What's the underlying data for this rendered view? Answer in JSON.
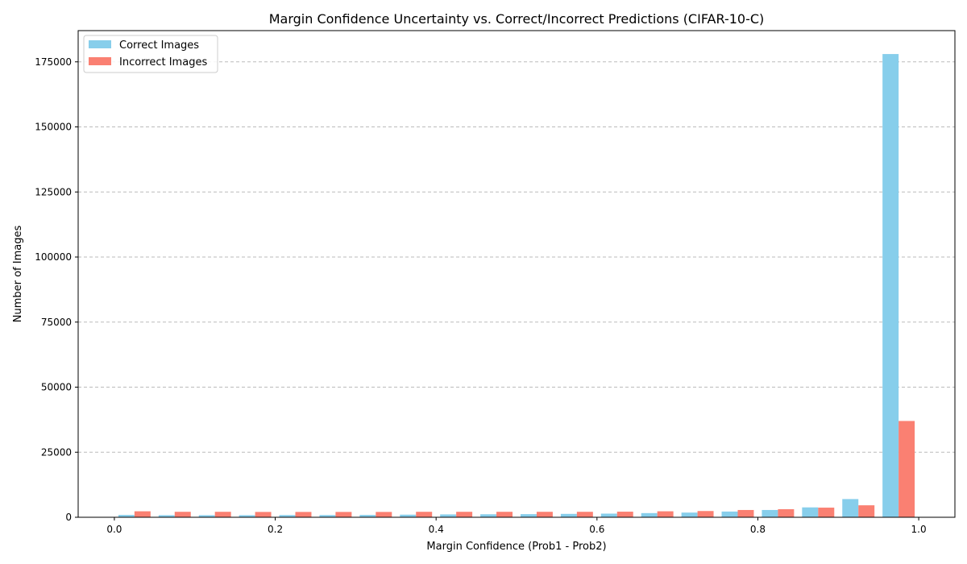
{
  "chart_data": {
    "type": "bar",
    "title": "Margin Confidence Uncertainty vs. Correct/Incorrect Predictions (CIFAR-10-C)",
    "xlabel": "Margin Confidence (Prob1 - Prob2)",
    "ylabel": "Number of Images",
    "xlim": [
      -0.045,
      1.045
    ],
    "ylim": [
      0,
      187000
    ],
    "xticks": [
      0.0,
      0.2,
      0.4,
      0.6,
      0.8,
      1.0
    ],
    "xtick_labels": [
      "0.0",
      "0.2",
      "0.4",
      "0.6",
      "0.8",
      "1.0"
    ],
    "yticks": [
      0,
      25000,
      50000,
      75000,
      100000,
      125000,
      150000,
      175000
    ],
    "ytick_labels": [
      "0",
      "25000",
      "50000",
      "75000",
      "100000",
      "125000",
      "150000",
      "175000"
    ],
    "grid": "y-dashed",
    "legend_position": "top-left",
    "bin_edges": [
      0.0,
      0.05,
      0.1,
      0.15,
      0.2,
      0.25,
      0.3,
      0.35,
      0.4,
      0.45,
      0.5,
      0.55,
      0.6,
      0.65,
      0.7,
      0.75,
      0.8,
      0.85,
      0.9,
      0.95,
      1.0
    ],
    "series": [
      {
        "name": "Correct Images",
        "color": "#87ceeb",
        "values": [
          900,
          800,
          800,
          800,
          850,
          850,
          900,
          1000,
          1100,
          1150,
          1200,
          1300,
          1400,
          1600,
          1800,
          2200,
          2800,
          3800,
          7000,
          178000
        ]
      },
      {
        "name": "Incorrect Images",
        "color": "#fa8072",
        "values": [
          2300,
          2100,
          2100,
          2050,
          2050,
          2050,
          2050,
          2100,
          2100,
          2100,
          2100,
          2100,
          2150,
          2300,
          2400,
          2800,
          3100,
          3700,
          4600,
          37000
        ]
      }
    ]
  }
}
